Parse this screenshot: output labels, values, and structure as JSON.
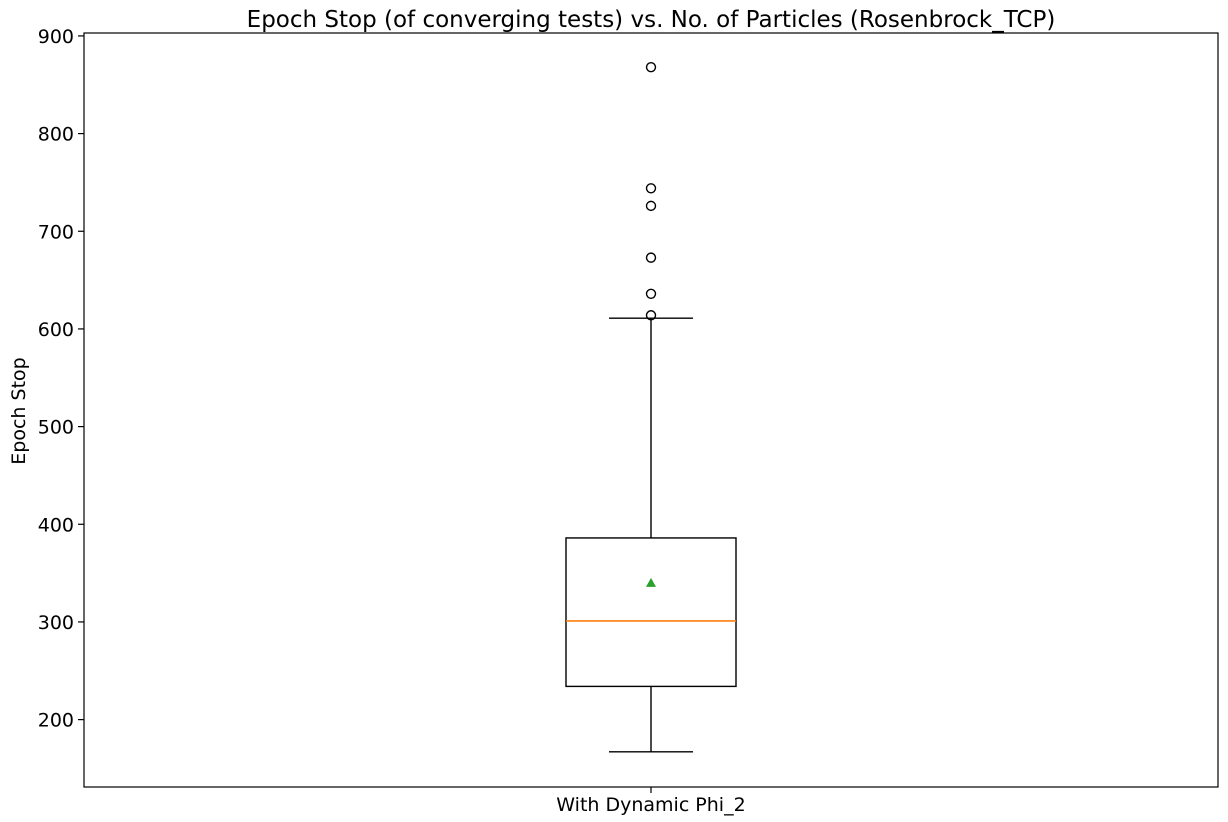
{
  "chart_data": {
    "type": "box",
    "title": "Epoch Stop (of converging tests) vs. No. of Particles (Rosenbrock_TCP)",
    "xlabel": "",
    "ylabel": "Epoch Stop",
    "categories": [
      "With Dynamic Phi_2"
    ],
    "ylim": [
      131,
      903
    ],
    "yticks": [
      200,
      300,
      400,
      500,
      600,
      700,
      800,
      900
    ],
    "grid": false,
    "boxes": [
      {
        "category": "With Dynamic Phi_2",
        "whisker_low": 167,
        "q1": 234,
        "median": 301,
        "q3": 386,
        "whisker_high": 611,
        "mean": 340,
        "outliers": [
          614,
          636,
          673,
          726,
          744,
          868
        ]
      }
    ],
    "colors": {
      "box": "#000000",
      "median": "#ff7f0e",
      "mean": "#2ca02c",
      "outlier": "#000000"
    }
  }
}
